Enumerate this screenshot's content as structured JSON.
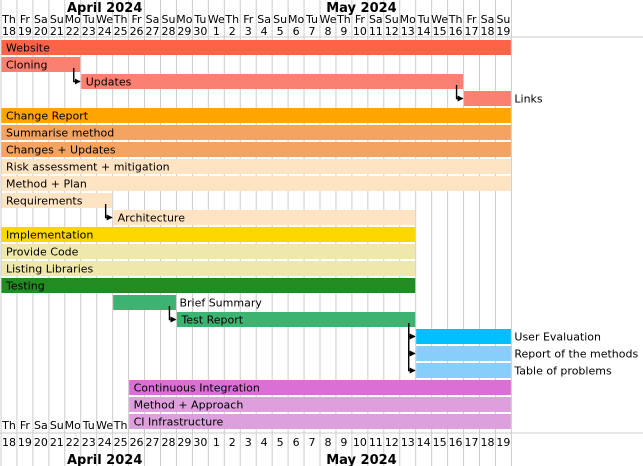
{
  "chart_data": {
    "type": "gantt",
    "months": [
      {
        "label": "April 2024",
        "top_start_index": 0,
        "bottom_start_index": 0
      },
      {
        "label": "May 2024",
        "top_start_index": 13,
        "bottom_start_index": 13
      }
    ],
    "month_positions": {
      "top": [
        "April 2024",
        "May 2024"
      ],
      "bottom": [
        "April 2024",
        "May 2024"
      ]
    },
    "days": [
      {
        "dow": "Th",
        "day": "18"
      },
      {
        "dow": "Fr",
        "day": "19"
      },
      {
        "dow": "Sa",
        "day": "20"
      },
      {
        "dow": "Su",
        "day": "21"
      },
      {
        "dow": "Mo",
        "day": "22"
      },
      {
        "dow": "Tu",
        "day": "23"
      },
      {
        "dow": "We",
        "day": "24"
      },
      {
        "dow": "Th",
        "day": "25"
      },
      {
        "dow": "Fr",
        "day": "26"
      },
      {
        "dow": "Sa",
        "day": "27"
      },
      {
        "dow": "Su",
        "day": "28"
      },
      {
        "dow": "Mo",
        "day": "29"
      },
      {
        "dow": "Tu",
        "day": "30"
      },
      {
        "dow": "We",
        "day": "1"
      },
      {
        "dow": "Th",
        "day": "2"
      },
      {
        "dow": "Fr",
        "day": "3"
      },
      {
        "dow": "Sa",
        "day": "4"
      },
      {
        "dow": "Su",
        "day": "5"
      },
      {
        "dow": "Mo",
        "day": "6"
      },
      {
        "dow": "Tu",
        "day": "7"
      },
      {
        "dow": "We",
        "day": "8"
      },
      {
        "dow": "Th",
        "day": "9"
      },
      {
        "dow": "Fr",
        "day": "10"
      },
      {
        "dow": "Sa",
        "day": "11"
      },
      {
        "dow": "Su",
        "day": "12"
      },
      {
        "dow": "Mo",
        "day": "13"
      },
      {
        "dow": "Tu",
        "day": "14"
      },
      {
        "dow": "We",
        "day": "15"
      },
      {
        "dow": "Th",
        "day": "16"
      },
      {
        "dow": "Fr",
        "day": "17"
      },
      {
        "dow": "Sa",
        "day": "18"
      },
      {
        "dow": "Su",
        "day": "19"
      }
    ],
    "tasks": [
      {
        "name": "Website",
        "start": "2024-04-18",
        "end": "2024-05-19",
        "color": "#ff6347",
        "label_inside": true
      },
      {
        "name": "Cloning",
        "start": "2024-04-18",
        "end": "2024-04-22",
        "color": "#fa8072",
        "label_inside": true
      },
      {
        "name": "Updates",
        "start": "2024-04-23",
        "end": "2024-05-16",
        "color": "#fa8072",
        "label_inside": true
      },
      {
        "name": "Links",
        "start": "2024-05-17",
        "end": "2024-05-19",
        "color": "#fa8072",
        "label_inside": false
      },
      {
        "name": "Change Report",
        "start": "2024-04-18",
        "end": "2024-05-19",
        "color": "#ffa500",
        "label_inside": true
      },
      {
        "name": "Summarise method",
        "start": "2024-04-18",
        "end": "2024-05-19",
        "color": "#f4a460",
        "label_inside": true
      },
      {
        "name": "Changes + Updates",
        "start": "2024-04-18",
        "end": "2024-05-19",
        "color": "#f4a460",
        "label_inside": true
      },
      {
        "name": "Risk assessment + mitigation",
        "start": "2024-04-18",
        "end": "2024-05-19",
        "color": "#ffe4c4",
        "label_inside": true
      },
      {
        "name": "Method + Plan",
        "start": "2024-04-18",
        "end": "2024-05-19",
        "color": "#ffe4c4",
        "label_inside": true
      },
      {
        "name": "Requirements",
        "start": "2024-04-18",
        "end": "2024-04-24",
        "color": "#ffe4c4",
        "label_inside": true
      },
      {
        "name": "Architecture",
        "start": "2024-04-25",
        "end": "2024-05-13",
        "color": "#ffe4c4",
        "label_inside": true
      },
      {
        "name": "Implementation",
        "start": "2024-04-18",
        "end": "2024-05-13",
        "color": "#ffd700",
        "label_inside": true
      },
      {
        "name": "Provide Code",
        "start": "2024-04-18",
        "end": "2024-05-13",
        "color": "#eee8aa",
        "label_inside": true
      },
      {
        "name": "Listing Libraries",
        "start": "2024-04-18",
        "end": "2024-05-13",
        "color": "#eee8aa",
        "label_inside": true
      },
      {
        "name": "Testing",
        "start": "2024-04-18",
        "end": "2024-05-13",
        "color": "#228b22",
        "label_inside": true
      },
      {
        "name": "Brief Summary",
        "start": "2024-04-25",
        "end": "2024-04-28",
        "color": "#3cb371",
        "label_inside": false
      },
      {
        "name": "Test Report",
        "start": "2024-04-29",
        "end": "2024-05-13",
        "color": "#3cb371",
        "label_inside": true
      },
      {
        "name": "User Evaluation",
        "start": "2024-05-14",
        "end": "2024-05-19",
        "color": "#00bfff",
        "label_inside": false
      },
      {
        "name": "Report of the methods",
        "start": "2024-05-14",
        "end": "2024-05-19",
        "color": "#87cefa",
        "label_inside": false
      },
      {
        "name": "Table of problems",
        "start": "2024-05-14",
        "end": "2024-05-19",
        "color": "#87cefa",
        "label_inside": false
      },
      {
        "name": "Continuous Integration",
        "start": "2024-04-26",
        "end": "2024-05-19",
        "color": "#da70d6",
        "label_inside": true
      },
      {
        "name": "Method + Approach",
        "start": "2024-04-26",
        "end": "2024-05-19",
        "color": "#dda0dd",
        "label_inside": true
      },
      {
        "name": "CI Infrastructure",
        "start": "2024-04-26",
        "end": "2024-05-19",
        "color": "#dda0dd",
        "label_inside": true
      }
    ],
    "dependencies": [
      {
        "from": "Cloning",
        "to": "Updates"
      },
      {
        "from": "Updates",
        "to": "Links"
      },
      {
        "from": "Requirements",
        "to": "Architecture"
      },
      {
        "from": "Brief Summary",
        "to": "Test Report"
      },
      {
        "from": "Test Report",
        "to": "User Evaluation"
      },
      {
        "from": "Test Report",
        "to": "Report of the methods"
      },
      {
        "from": "Test Report",
        "to": "Table of problems"
      }
    ],
    "grid": true,
    "grid_color": "#cccccc"
  }
}
